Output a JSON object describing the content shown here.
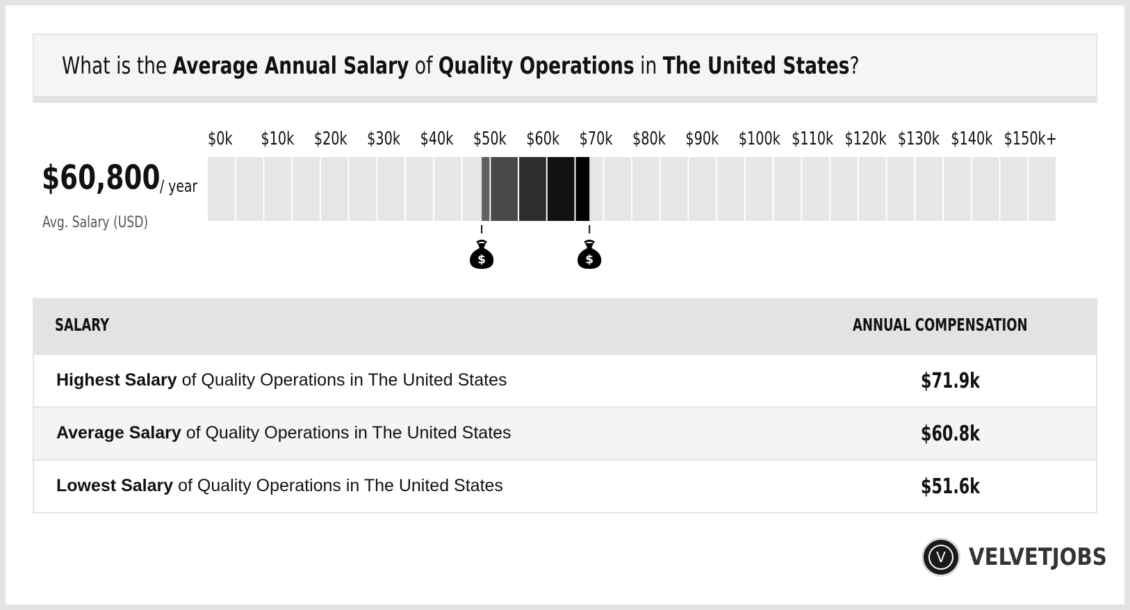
{
  "title": {
    "t1": "What is the ",
    "b1": "Average Annual Salary",
    "t2": " of ",
    "b2": "Quality Operations",
    "t3": " in ",
    "b3": "The United States",
    "t4": "?"
  },
  "average": {
    "value": "$60,800",
    "unit": "/ year",
    "label": "Avg. Salary (USD)"
  },
  "chart_data": {
    "type": "bar",
    "categories": [
      "$0k",
      "$10k",
      "$20k",
      "$30k",
      "$40k",
      "$50k",
      "$60k",
      "$70k",
      "$80k",
      "$90k",
      "$100k",
      "$110k",
      "$120k",
      "$130k",
      "$140k",
      "$150k+"
    ],
    "range_low": 51600,
    "range_high": 71900,
    "average": 60800,
    "xlim": [
      0,
      160000
    ],
    "colors": {
      "empty": "#e6e6e6",
      "gradient": [
        "#616161",
        "#494949",
        "#2e2e2e",
        "#121212",
        "#000000"
      ]
    },
    "markers": [
      "money-bag-icon",
      "money-bag-icon"
    ]
  },
  "table": {
    "headers": [
      "SALARY",
      "ANNUAL COMPENSATION"
    ],
    "rows": [
      {
        "bold": "Highest Salary",
        "rest": " of Quality Operations in The United States",
        "amount": "$71.9k"
      },
      {
        "bold": "Average Salary",
        "rest": " of Quality Operations in The United States",
        "amount": "$60.8k"
      },
      {
        "bold": "Lowest Salary",
        "rest": " of Quality Operations in The United States",
        "amount": "$51.6k"
      }
    ]
  },
  "logo": {
    "letter": "V",
    "name": "VELVETJOBS"
  }
}
